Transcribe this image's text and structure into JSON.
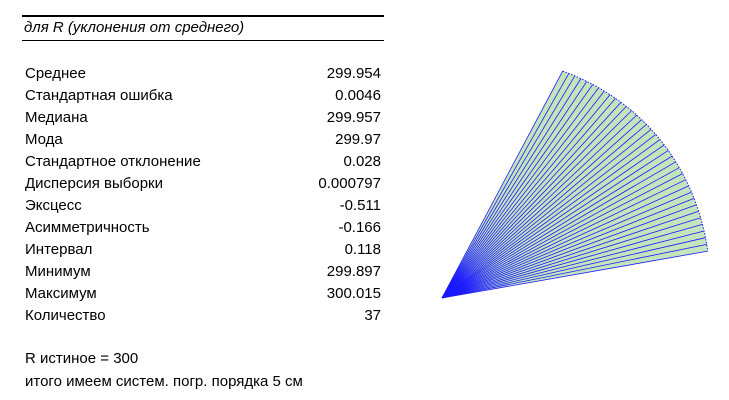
{
  "stats": {
    "title": "для R (уклонения от среднего)",
    "rows": [
      {
        "label": "Среднее",
        "value": "299.954"
      },
      {
        "label": "Стандартная ошибка",
        "value": "0.0046"
      },
      {
        "label": "Медиана",
        "value": "299.957"
      },
      {
        "label": "Мода",
        "value": "299.97"
      },
      {
        "label": "Стандартное отклонение",
        "value": "0.028"
      },
      {
        "label": "Дисперсия выборки",
        "value": "0.000797"
      },
      {
        "label": "Эксцесс",
        "value": "-0.511"
      },
      {
        "label": "Асимметричность",
        "value": "-0.166"
      },
      {
        "label": "Интервал",
        "value": "0.118"
      },
      {
        "label": "Минимум",
        "value": "299.897"
      },
      {
        "label": "Максимум",
        "value": "300.015"
      },
      {
        "label": "Количество",
        "value": "37"
      }
    ]
  },
  "notes": {
    "line1": "R истиное = 300",
    "line2": "итого имеем систем. погр. порядка 5 см"
  },
  "colors": {
    "fan_fill": "#c4e4bc",
    "fan_line": "#1a1aff"
  }
}
